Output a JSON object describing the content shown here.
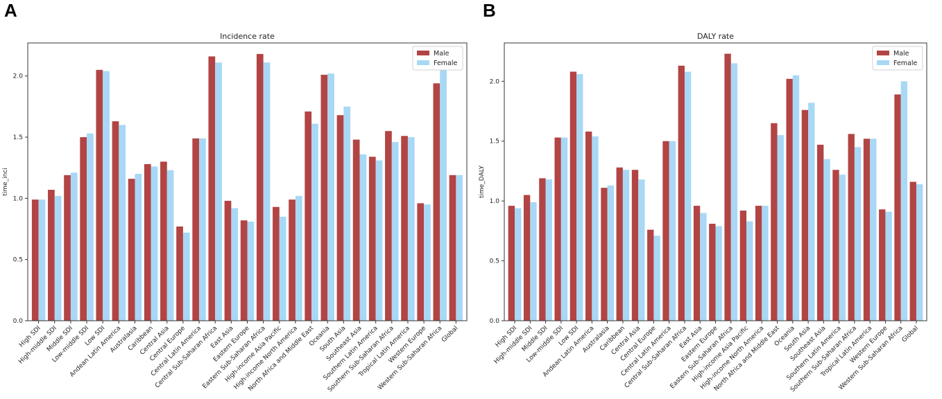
{
  "panels": {
    "a_label": "A",
    "b_label": "B"
  },
  "colors": {
    "male": "#b24444",
    "female": "#a8d8f5"
  },
  "chart_data": [
    {
      "type": "bar",
      "title": "Incidence rate",
      "xlabel": "",
      "ylabel": "time_inci",
      "ylim": [
        0,
        2.27
      ],
      "yticks": [
        "0.0",
        "0.5",
        "1.0",
        "1.5",
        "2.0"
      ],
      "legend": "top-right",
      "categories": [
        "High SDI",
        "High-middle SDI",
        "Middle SDI",
        "Low-middle SDI",
        "Low SDI",
        "Andean Latin America",
        "Australasia",
        "Caribbean",
        "Central Asia",
        "Central Europe",
        "Central Latin America",
        "Central Sub-Saharan Africa",
        "East Asia",
        "Eastern Europe",
        "Eastern Sub-Saharan Africa",
        "High-income Asia Pacific",
        "High-income North America",
        "North Africa and Middle East",
        "Oceania",
        "South Asia",
        "Southeast Asia",
        "Southern Latin America",
        "Southern Sub-Saharan Africa",
        "Tropical Latin America",
        "Western Europe",
        "Western Sub-Saharan Africa",
        "Global"
      ],
      "series": [
        {
          "name": "Male",
          "values": [
            0.99,
            1.07,
            1.19,
            1.5,
            2.05,
            1.63,
            1.16,
            1.28,
            1.3,
            0.77,
            1.49,
            2.16,
            0.98,
            0.82,
            2.18,
            0.93,
            0.99,
            1.71,
            2.01,
            1.68,
            1.48,
            1.34,
            1.55,
            1.51,
            0.96,
            1.94,
            1.19
          ]
        },
        {
          "name": "Female",
          "values": [
            0.99,
            1.02,
            1.21,
            1.53,
            2.04,
            1.6,
            1.2,
            1.26,
            1.23,
            0.72,
            1.49,
            2.11,
            0.92,
            0.81,
            2.11,
            0.85,
            1.02,
            1.61,
            2.02,
            1.75,
            1.36,
            1.31,
            1.46,
            1.5,
            0.95,
            2.06,
            1.19
          ]
        }
      ]
    },
    {
      "type": "bar",
      "title": "DALY rate",
      "xlabel": "",
      "ylabel": "time_DALY",
      "ylim": [
        0,
        2.32
      ],
      "yticks": [
        "0.0",
        "0.5",
        "1.0",
        "1.5",
        "2.0"
      ],
      "legend": "top-right",
      "categories": [
        "High SDI",
        "High-middle SDI",
        "Middle SDI",
        "Low-middle SDI",
        "Low SDI",
        "Andean Latin America",
        "Australasia",
        "Caribbean",
        "Central Asia",
        "Central Europe",
        "Central Latin America",
        "Central Sub-Saharan Africa",
        "East Asia",
        "Eastern Europe",
        "Eastern Sub-Saharan Africa",
        "High-income Asia Pacific",
        "High-income North America",
        "North Africa and Middle East",
        "Oceania",
        "South Asia",
        "Southeast Asia",
        "Southern Latin America",
        "Southern Sub-Saharan Africa",
        "Tropical Latin America",
        "Western Europe",
        "Western Sub-Saharan Africa",
        "Global"
      ],
      "series": [
        {
          "name": "Male",
          "values": [
            0.96,
            1.05,
            1.19,
            1.53,
            2.08,
            1.58,
            1.11,
            1.28,
            1.26,
            0.76,
            1.5,
            2.13,
            0.96,
            0.81,
            2.23,
            0.92,
            0.96,
            1.65,
            2.02,
            1.76,
            1.47,
            1.26,
            1.56,
            1.52,
            0.93,
            1.89,
            1.16
          ]
        },
        {
          "name": "Female",
          "values": [
            0.94,
            0.99,
            1.18,
            1.53,
            2.06,
            1.54,
            1.13,
            1.26,
            1.18,
            0.71,
            1.5,
            2.08,
            0.9,
            0.79,
            2.15,
            0.83,
            0.96,
            1.55,
            2.05,
            1.82,
            1.35,
            1.22,
            1.45,
            1.52,
            0.91,
            2.0,
            1.14
          ]
        }
      ]
    }
  ]
}
